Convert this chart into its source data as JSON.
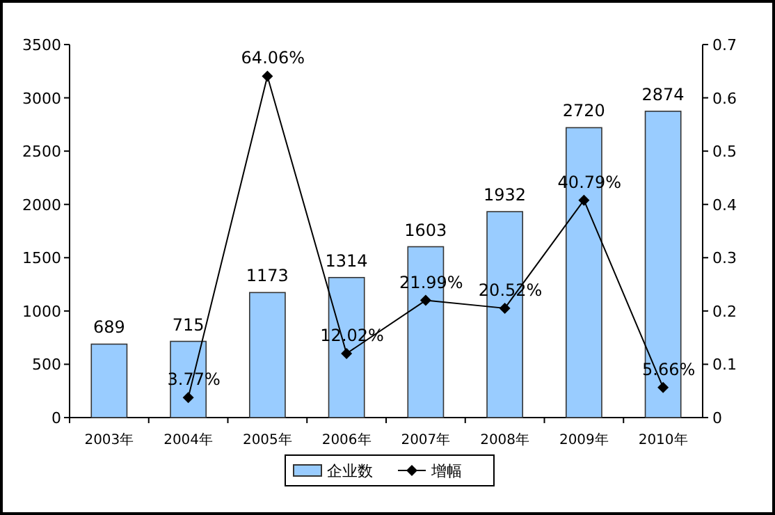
{
  "chart_data": {
    "type": "bar",
    "categories": [
      "2003年",
      "2004年",
      "2005年",
      "2006年",
      "2007年",
      "2008年",
      "2009年",
      "2010年"
    ],
    "series": [
      {
        "name": "企业数",
        "color": "#99ccff",
        "values": [
          689,
          715,
          1173,
          1314,
          1603,
          1932,
          2720,
          2874
        ]
      },
      {
        "name": "增幅",
        "type": "line",
        "axis": "y2",
        "color": "#000000",
        "marker": "diamond",
        "values": [
          null,
          0.0377,
          0.6406,
          0.1202,
          0.2199,
          0.2052,
          0.4079,
          0.0566
        ],
        "value_labels": [
          null,
          "3.77%",
          "64.06%",
          "12.02%",
          "21.99%",
          "20.52%",
          "40.79%",
          "5.66%"
        ]
      }
    ],
    "data_labels": true,
    "ylim": [
      0,
      3500
    ],
    "yticks": [
      0,
      500,
      1000,
      1500,
      2000,
      2500,
      3000,
      3500
    ],
    "y2lim": [
      0,
      0.7
    ],
    "y2ticks": [
      0,
      0.1,
      0.2,
      0.3,
      0.4,
      0.5,
      0.6,
      0.7
    ],
    "legend": "bottom"
  }
}
